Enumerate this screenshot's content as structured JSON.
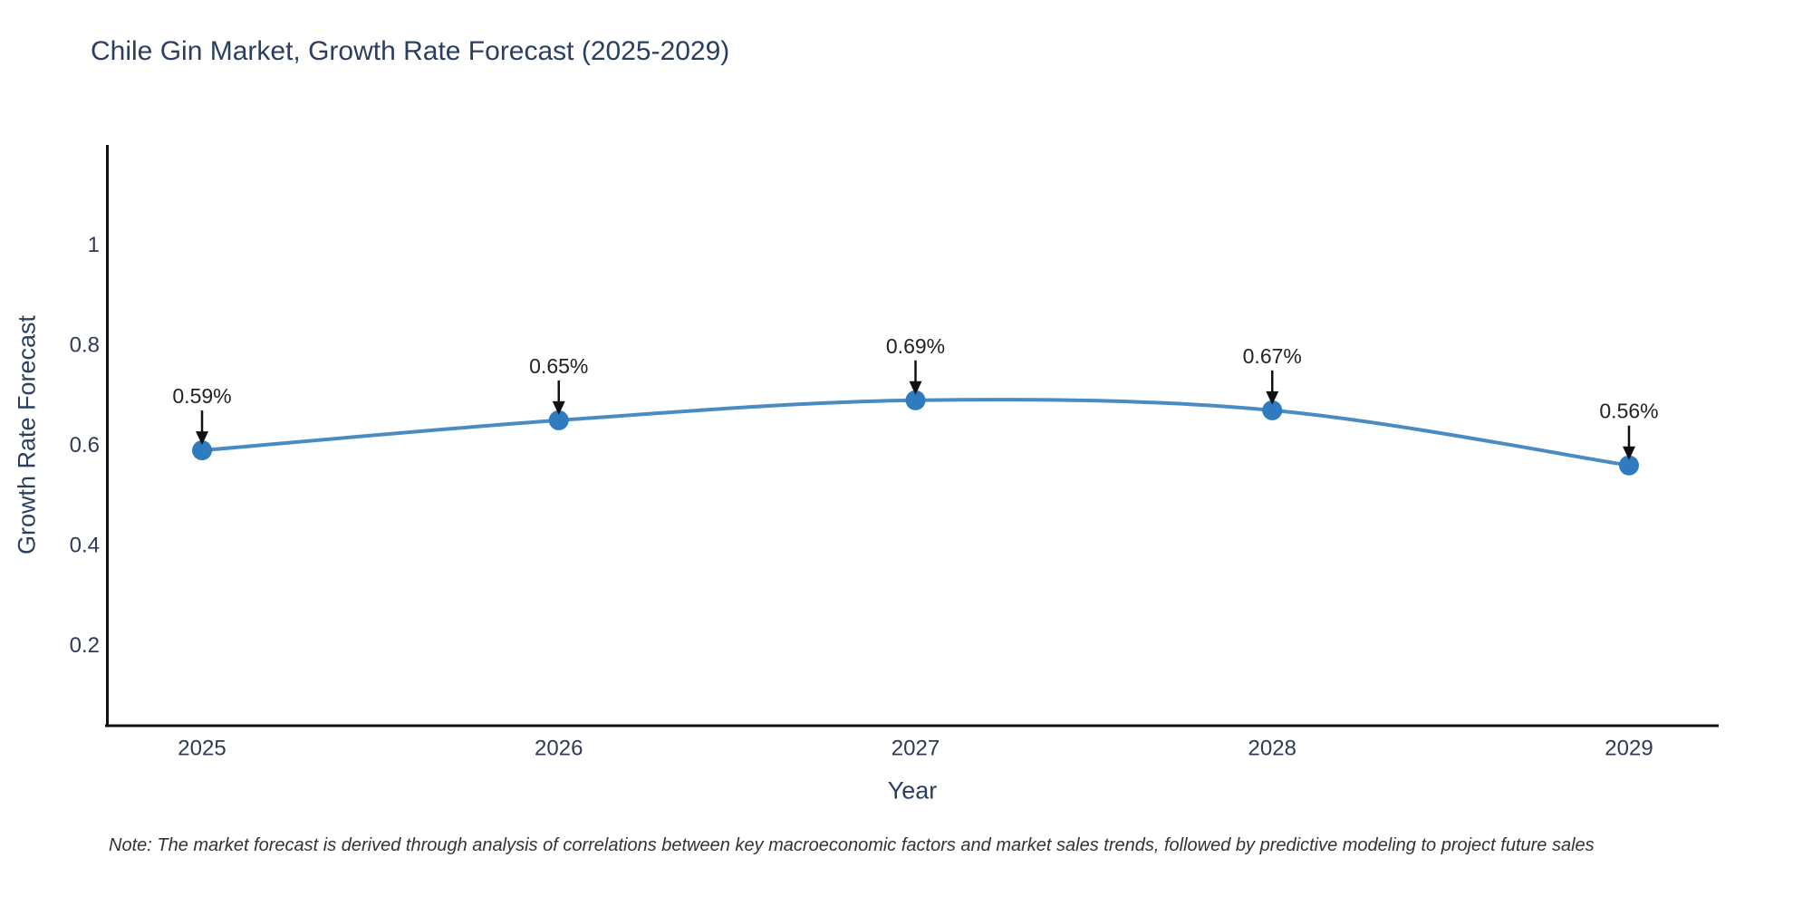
{
  "title": "Chile Gin Market, Growth Rate Forecast (2025-2029)",
  "note": "Note: The market forecast is derived through analysis of correlations between key macroeconomic factors and market sales trends, followed by predictive modeling to project future sales",
  "chart_data": {
    "type": "line",
    "title": "Chile Gin Market, Growth Rate Forecast (2025-2029)",
    "xlabel": "Year",
    "ylabel": "Growth Rate Forecast",
    "categories": [
      "2025",
      "2026",
      "2027",
      "2028",
      "2029"
    ],
    "series": [
      {
        "name": "Growth Rate Forecast",
        "values": [
          0.59,
          0.65,
          0.69,
          0.67,
          0.56
        ],
        "point_labels": [
          "0.59%",
          "0.65%",
          "0.69%",
          "0.67%",
          "0.56%"
        ]
      }
    ],
    "y_ticks": [
      "1",
      "0.8",
      "0.6",
      "0.4",
      "0.2"
    ],
    "y_tick_values": [
      1,
      0.8,
      0.6,
      0.4,
      0.2
    ],
    "ylim": [
      0.04,
      1.2
    ],
    "grid": false,
    "legend_position": "none",
    "line_shape": "spline",
    "colors": {
      "line": "#4a8bc2",
      "marker": "#2e7cbf",
      "axis": "#111111",
      "arrow": "#111111",
      "title_text": "#2a3f5f",
      "tick_text": "#2f3b52",
      "annotation_text": "#222222",
      "note_text": "#333333"
    }
  }
}
